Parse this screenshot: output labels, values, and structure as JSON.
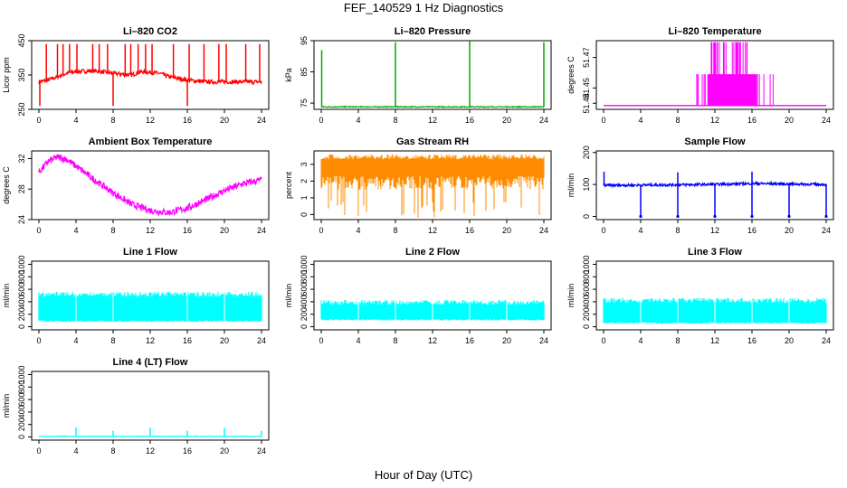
{
  "page": {
    "title": "FEF_140529  1 Hz Diagnostics",
    "xlabel": "Hour of Day (UTC)"
  },
  "chart_data": [
    {
      "type": "line",
      "title": "Li–820 CO2",
      "ylabel": "Licor ppm",
      "color": "#ff0000",
      "xlim": [
        0,
        24
      ],
      "ylim": [
        250,
        450
      ],
      "xticks": [
        "0",
        "4",
        "8",
        "12",
        "16",
        "20",
        "24"
      ],
      "yticks": [
        250,
        350,
        450
      ],
      "ytick_labels": [
        "250",
        "350",
        "450"
      ],
      "series": [
        {
          "baseline": [
            [
              0,
              330
            ],
            [
              1,
              335
            ],
            [
              2,
              345
            ],
            [
              3,
              355
            ],
            [
              4,
              360
            ],
            [
              6,
              362
            ],
            [
              8,
              355
            ],
            [
              10,
              350
            ],
            [
              11,
              360
            ],
            [
              13,
              355
            ],
            [
              14,
              345
            ],
            [
              16,
              335
            ],
            [
              18,
              330
            ],
            [
              22,
              330
            ],
            [
              24,
              330
            ]
          ],
          "noise": 6,
          "spikes": [
            [
              0.1,
              260
            ],
            [
              0.8,
              440
            ],
            [
              2.0,
              440
            ],
            [
              2.6,
              440
            ],
            [
              3.3,
              440
            ],
            [
              4.1,
              440
            ],
            [
              5.8,
              440
            ],
            [
              6.5,
              440
            ],
            [
              7.4,
              440
            ],
            [
              8.0,
              260
            ],
            [
              9.3,
              440
            ],
            [
              9.9,
              440
            ],
            [
              10.7,
              440
            ],
            [
              11.5,
              440
            ],
            [
              12.2,
              440
            ],
            [
              14.5,
              440
            ],
            [
              16.0,
              260
            ],
            [
              16.2,
              440
            ],
            [
              17.8,
              440
            ],
            [
              19.4,
              440
            ],
            [
              20.2,
              440
            ],
            [
              22.3,
              440
            ],
            [
              23.8,
              440
            ]
          ]
        }
      ]
    },
    {
      "type": "line",
      "title": "Li–820 Pressure",
      "ylabel": "kPa",
      "color": "#00aa00",
      "xlim": [
        0,
        24
      ],
      "ylim": [
        73,
        95
      ],
      "xticks": [
        "0",
        "4",
        "8",
        "12",
        "16",
        "20",
        "24"
      ],
      "yticks": [
        75,
        85,
        95
      ],
      "ytick_labels": [
        "75",
        "85",
        "95"
      ],
      "series": [
        {
          "baseline": [
            [
              0,
              73.8
            ],
            [
              24,
              73.8
            ]
          ],
          "noise": 0.15,
          "spikes": [
            [
              0.05,
              92
            ],
            [
              8.0,
              94.5
            ],
            [
              16.0,
              94.8
            ],
            [
              24.0,
              94.5
            ]
          ]
        }
      ]
    },
    {
      "type": "line",
      "title": "Li–820 Temperature",
      "ylabel": "degrees C",
      "color": "#ff00ff",
      "xlim": [
        0,
        24
      ],
      "ylim": [
        51.436,
        51.481
      ],
      "xticks": [
        "0",
        "4",
        "8",
        "12",
        "16",
        "20",
        "24"
      ],
      "yticks": [
        51.44,
        51.45,
        51.47
      ],
      "ytick_labels": [
        "51.44",
        "51.45",
        "51.47"
      ],
      "series": [
        {
          "baseline": [
            [
              0,
              51.4385
            ],
            [
              24,
              51.4385
            ]
          ],
          "band": {
            "start": 10,
            "end": 18.5,
            "low": 51.4385,
            "high": 51.459,
            "spike_high": 51.48,
            "spike_start": 11.5,
            "spike_end": 15.5
          }
        }
      ]
    },
    {
      "type": "line",
      "title": "Ambient Box Temperature",
      "ylabel": "degrees C",
      "color": "#ff00ff",
      "xlim": [
        0,
        24
      ],
      "ylim": [
        24,
        33
      ],
      "xticks": [
        "0",
        "4",
        "8",
        "12",
        "16",
        "20",
        "24"
      ],
      "yticks": [
        24,
        28,
        32
      ],
      "ytick_labels": [
        "24",
        "28",
        "32"
      ],
      "series": [
        {
          "baseline": [
            [
              0,
              30.2
            ],
            [
              1,
              31.6
            ],
            [
              2,
              32.2
            ],
            [
              3,
              31.9
            ],
            [
              4,
              31.0
            ],
            [
              6,
              29.2
            ],
            [
              8,
              27.5
            ],
            [
              10,
              26.0
            ],
            [
              12,
              25.2
            ],
            [
              14,
              24.9
            ],
            [
              16,
              25.5
            ],
            [
              18,
              26.6
            ],
            [
              20,
              27.8
            ],
            [
              22,
              28.7
            ],
            [
              24,
              29.2
            ]
          ],
          "noise": 0.45
        }
      ]
    },
    {
      "type": "line",
      "title": "Gas Stream RH",
      "ylabel": "percent",
      "color": "#ff8c00",
      "xlim": [
        0,
        24
      ],
      "ylim": [
        -0.3,
        3.8
      ],
      "xticks": [
        "0",
        "4",
        "8",
        "12",
        "16",
        "20",
        "24"
      ],
      "yticks": [
        0,
        1,
        2,
        3
      ],
      "ytick_labels": [
        "0",
        "1",
        "2",
        "3"
      ],
      "series": [
        {
          "baseline": [
            [
              0,
              3.5
            ],
            [
              24,
              3.5
            ]
          ],
          "dense_low": 1.5,
          "dense_high": 3.6,
          "dip_low": -0.2
        }
      ]
    },
    {
      "type": "line",
      "title": "Sample Flow",
      "ylabel": "ml/min",
      "color": "#0000ff",
      "xlim": [
        0,
        24
      ],
      "ylim": [
        -10,
        205
      ],
      "xticks": [
        "0",
        "4",
        "8",
        "12",
        "16",
        "20",
        "24"
      ],
      "yticks": [
        0,
        100,
        200
      ],
      "ytick_labels": [
        "0",
        "100",
        "200"
      ],
      "series": [
        {
          "baseline": [
            [
              0,
              97
            ],
            [
              12,
              100
            ],
            [
              16,
              103
            ],
            [
              24,
              100
            ]
          ],
          "noise": 4,
          "spikes": [
            [
              0.05,
              140
            ],
            [
              8.0,
              138
            ],
            [
              16.0,
              140
            ]
          ],
          "dips": [
            [
              4.0,
              0
            ],
            [
              8.0,
              0
            ],
            [
              12.0,
              0
            ],
            [
              16.0,
              0
            ],
            [
              20.0,
              0
            ],
            [
              24.0,
              0
            ]
          ]
        }
      ]
    },
    {
      "type": "area",
      "title": "Line 1 Flow",
      "ylabel": "ml/min",
      "color": "#00ffff",
      "xlim": [
        0,
        24
      ],
      "ylim": [
        -50,
        1050
      ],
      "xticks": [
        "0",
        "4",
        "8",
        "12",
        "16",
        "20",
        "24"
      ],
      "yticks": [
        0,
        200,
        400,
        600,
        800,
        1000
      ],
      "ytick_labels": [
        "0",
        "200",
        "400",
        "600",
        "800",
        "1000"
      ],
      "series": [
        {
          "low": 80,
          "high": 560,
          "gaps": [
            4,
            8,
            16,
            20
          ]
        }
      ]
    },
    {
      "type": "area",
      "title": "Line 2 Flow",
      "ylabel": "ml/min",
      "color": "#00ffff",
      "xlim": [
        0,
        24
      ],
      "ylim": [
        -50,
        1050
      ],
      "xticks": [
        "0",
        "4",
        "8",
        "12",
        "16",
        "20",
        "24"
      ],
      "yticks": [
        0,
        200,
        400,
        600,
        800,
        1000
      ],
      "ytick_labels": [
        "0",
        "200",
        "400",
        "600",
        "800",
        "1000"
      ],
      "series": [
        {
          "low": 100,
          "high": 430,
          "gaps": [
            4,
            8,
            12,
            16,
            20
          ]
        }
      ]
    },
    {
      "type": "area",
      "title": "Line 3 Flow",
      "ylabel": "ml/min",
      "color": "#00ffff",
      "xlim": [
        0,
        24
      ],
      "ylim": [
        -50,
        1050
      ],
      "xticks": [
        "0",
        "4",
        "8",
        "12",
        "16",
        "20",
        "24"
      ],
      "yticks": [
        0,
        200,
        400,
        600,
        800,
        1000
      ],
      "ytick_labels": [
        "0",
        "200",
        "400",
        "600",
        "800",
        "1000"
      ],
      "series": [
        {
          "low": 50,
          "high": 460,
          "gaps": [
            4,
            8,
            12,
            16,
            20
          ]
        }
      ]
    },
    {
      "type": "line",
      "title": "Line 4 (LT) Flow",
      "ylabel": "ml/min",
      "color": "#00ffff",
      "xlim": [
        0,
        24
      ],
      "ylim": [
        -50,
        1050
      ],
      "xticks": [
        "0",
        "4",
        "8",
        "12",
        "16",
        "20",
        "24"
      ],
      "yticks": [
        0,
        200,
        400,
        600,
        800,
        1000
      ],
      "ytick_labels": [
        "0",
        "200",
        "400",
        "600",
        "800",
        "1000"
      ],
      "series": [
        {
          "baseline": [
            [
              0,
              10
            ],
            [
              24,
              10
            ]
          ],
          "noise": 4,
          "spikes": [
            [
              4.0,
              150
            ],
            [
              8.0,
              100
            ],
            [
              12.0,
              150
            ],
            [
              16.0,
              100
            ],
            [
              20.0,
              150
            ],
            [
              24.0,
              100
            ]
          ]
        }
      ]
    }
  ]
}
